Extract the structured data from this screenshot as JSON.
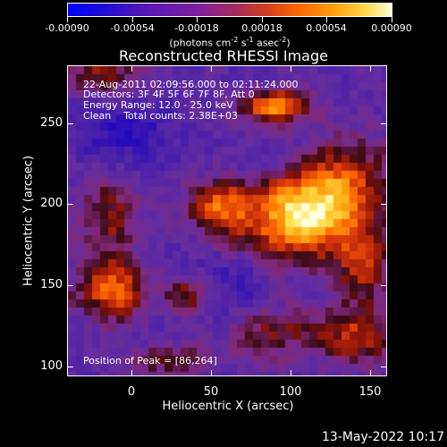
{
  "colorbar": {
    "tick_labels": [
      "-0.00090",
      "-0.00054",
      "-0.00018",
      "0.00018",
      "0.00054",
      "0.00090"
    ],
    "units_prefix": "(photons cm",
    "units_exp1": "-2",
    "units_mid1": " s",
    "units_exp2": "-1",
    "units_mid2": " asec",
    "units_exp3": "-2",
    "units_suffix": ")",
    "colors": [
      "#0000ff",
      "#5a16b4",
      "#7d1f9f",
      "#a62a5a",
      "#d7401a",
      "#ff6a00",
      "#ff9d10",
      "#ffd84a",
      "#ffffd8"
    ]
  },
  "plot": {
    "title": "Reconstructed RHESSI Image",
    "info_time": "22-Aug-2011 02:09:56.000 to 02:11:24.000",
    "info_detectors": "Detectors: 3F 4F 5F 6F 7F 8F, Att 0",
    "info_energy": "Energy Range: 12.0 - 25.0 keV",
    "info_clean": "Clean    Total counts: 2.38E+03",
    "info_peak": "Position of Peak = [86,264]",
    "x_axis_title": "Heliocentric X (arcsec)",
    "y_axis_title": "Heliocentric Y (arcsec)",
    "x_ticks": [
      "0",
      "50",
      "100",
      "150"
    ],
    "y_ticks": [
      "100",
      "150",
      "200",
      "250"
    ]
  },
  "footer": {
    "date": "13-May-2022 10:17"
  }
}
